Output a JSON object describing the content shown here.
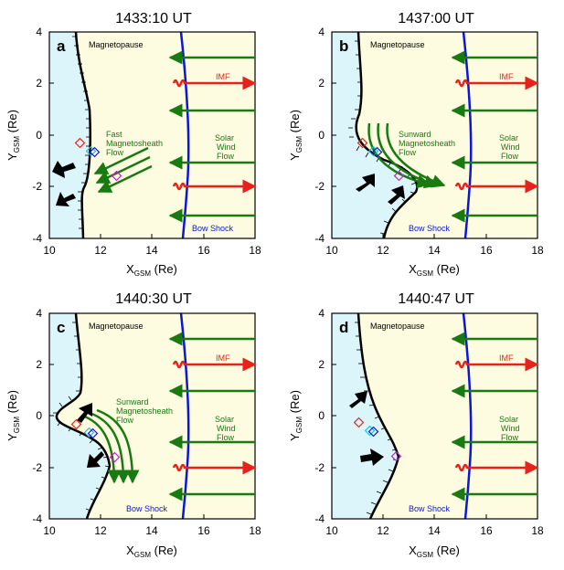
{
  "colors": {
    "magnetosphere_fill": "#dcf5fa",
    "sheath_fill": "#fdfbe0",
    "bow_shock": "#0b16d6",
    "solar_wind_arrows": "#1a7a12",
    "imf": "#e8221a",
    "flow_arrows": "#1a7a12",
    "magnetopause": "#000000",
    "marker_red": "#e8221a",
    "marker_blue": "#0b16d6",
    "marker_cyan": "#19c3d6",
    "marker_magenta": "#c81ec8"
  },
  "axes": {
    "x_range": [
      10,
      18
    ],
    "y_range": [
      -4,
      4
    ],
    "x_ticks": [
      "10",
      "12",
      "14",
      "16",
      "18"
    ],
    "y_ticks": [
      "4",
      "2",
      "0",
      "-2",
      "-4"
    ],
    "x_label": {
      "main": "X",
      "sub": "GSM",
      "rest": " (Re)"
    },
    "y_label": {
      "main": "Y",
      "sub": "GSM",
      "rest": " (Re)"
    }
  },
  "labels": {
    "magnetopause": "Magnetopause",
    "imf": "IMF",
    "bow_shock": "Bow Shock",
    "solar_wind": [
      "Solar",
      "Wind",
      "Flow"
    ]
  },
  "panels": [
    {
      "id": "a",
      "title": "1433:10 UT",
      "letter": "a",
      "flow_text": [
        "Fast",
        "Magnetosheath",
        "Flow"
      ]
    },
    {
      "id": "b",
      "title": "1437:00 UT",
      "letter": "b",
      "flow_text": [
        "Sunward",
        "Magnetosheath",
        "Flow"
      ]
    },
    {
      "id": "c",
      "title": "1440:30 UT",
      "letter": "c",
      "flow_text": [
        "Sunward",
        "Magnetosheath",
        "Flow"
      ]
    },
    {
      "id": "d",
      "title": "1440:47 UT",
      "letter": "d",
      "flow_text": []
    }
  ]
}
